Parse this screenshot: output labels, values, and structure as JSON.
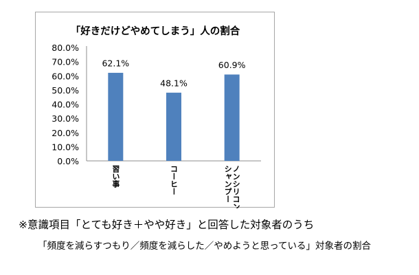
{
  "chart_data": {
    "type": "bar",
    "title": "「好きだけどやめてしまう」人の割合",
    "categories": [
      "習い事",
      "コーヒー",
      "ノンシリコンシャンプー"
    ],
    "category_lines": [
      [
        "習い事"
      ],
      [
        "コーヒー"
      ],
      [
        "ノンシリコン",
        "シャンプー"
      ]
    ],
    "values": [
      62.1,
      48.1,
      60.9
    ],
    "data_labels": [
      "62.1%",
      "48.1%",
      "60.9%"
    ],
    "ylim": [
      0,
      80
    ],
    "yticks": [
      "0.0%",
      "10.0%",
      "20.0%",
      "30.0%",
      "40.0%",
      "50.0%",
      "60.0%",
      "70.0%",
      "80.0%"
    ],
    "grid": false,
    "legend": "none",
    "bar_color": "#4f81bd"
  },
  "notes": [
    "※意識項目「とても好き＋やや好き」と回答した対象者のうち",
    "「頻度を減らすつもり／頻度を減らした／やめようと思っている」対象者の割合"
  ]
}
